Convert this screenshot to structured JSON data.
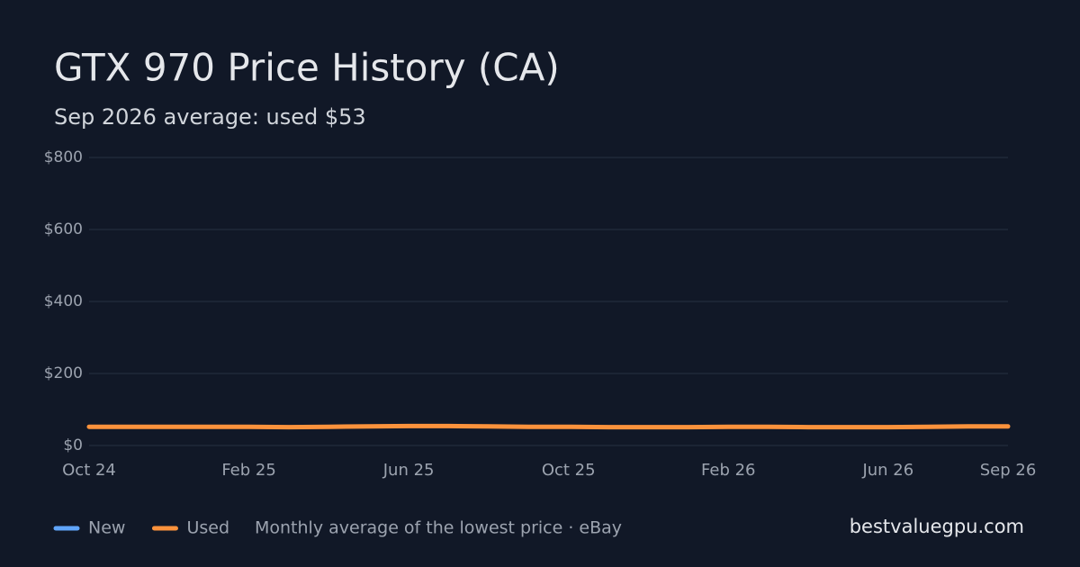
{
  "chart_data": {
    "type": "line",
    "title": "GTX 970 Price History (CA)",
    "subtitle": "Sep 2026 average: used $53",
    "categories": [
      "Oct 24",
      null,
      null,
      null,
      "Feb 25",
      null,
      null,
      null,
      "Jun 25",
      null,
      null,
      null,
      "Oct 25",
      null,
      null,
      null,
      "Feb 26",
      null,
      null,
      null,
      "Jun 26",
      null,
      null,
      "Sep 26"
    ],
    "series": [
      {
        "name": "New",
        "color": "#60a5fa",
        "values": [
          null,
          null,
          null,
          null,
          null,
          null,
          null,
          null,
          null,
          null,
          null,
          null,
          null,
          null,
          null,
          null,
          null,
          null,
          null,
          null,
          null,
          null,
          null,
          null
        ]
      },
      {
        "name": "Used",
        "color": "#fb923c",
        "values": [
          52,
          52,
          52,
          52,
          52,
          51,
          52,
          53,
          54,
          54,
          53,
          52,
          52,
          51,
          51,
          51,
          52,
          52,
          51,
          51,
          51,
          52,
          53,
          53
        ]
      }
    ],
    "ylim": [
      0,
      800
    ],
    "yticks": [
      {
        "value": 0,
        "label": "$0"
      },
      {
        "value": 200,
        "label": "$200"
      },
      {
        "value": 400,
        "label": "$400"
      },
      {
        "value": 600,
        "label": "$600"
      },
      {
        "value": 800,
        "label": "$800"
      }
    ],
    "grid": true,
    "note": "Monthly average of the lowest price · eBay",
    "site": "bestvaluegpu.com"
  }
}
